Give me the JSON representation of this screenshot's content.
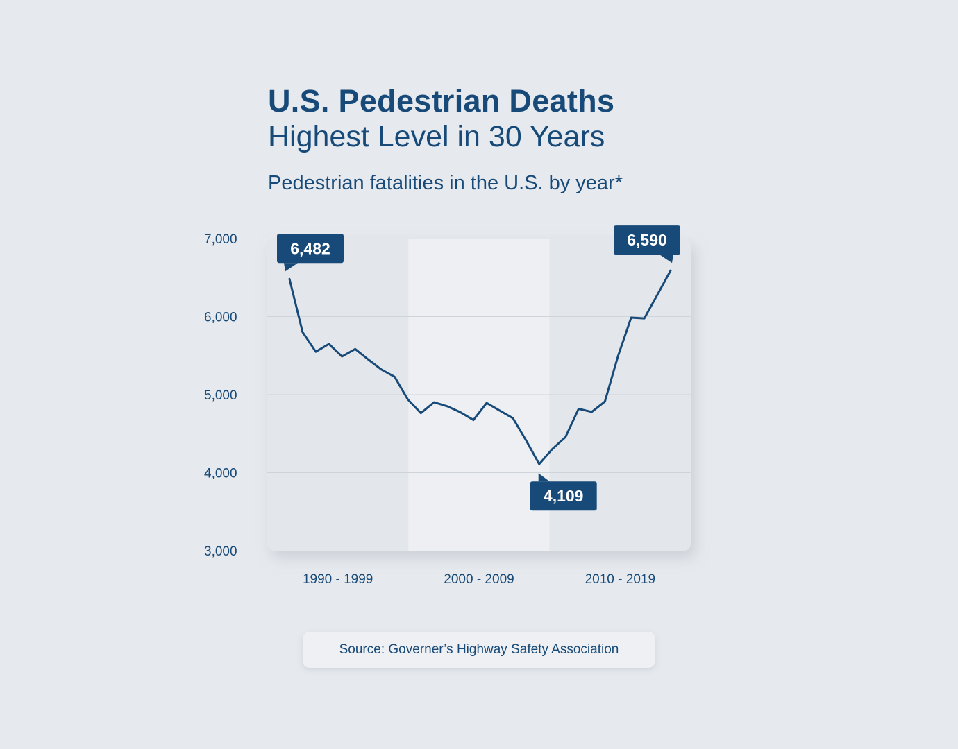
{
  "title": {
    "line1": "U.S. Pedestrian Deaths",
    "line2": "Highest Level in 30 Years"
  },
  "subtitle": "Pedestrian fatalities in the U.S. by year*",
  "source": "Source: Governer’s Highway Safety Association",
  "colors": {
    "background": "#e6e9ed",
    "line": "#174a78",
    "callout": "#174a78",
    "band_dark": "#e3e6ea",
    "band_light": "#edeff2"
  },
  "chart_data": {
    "type": "line",
    "ylim": [
      3000,
      7000
    ],
    "yticks": [
      7000,
      6000,
      5000,
      4000,
      3000
    ],
    "ytick_labels": [
      "7,000",
      "6,000",
      "5,000",
      "4,000",
      "3,000"
    ],
    "x_groups": [
      "1990 - 1999",
      "2000 - 2009",
      "2010 - 2019"
    ],
    "x": [
      1990,
      1991,
      1992,
      1993,
      1994,
      1995,
      1996,
      1997,
      1998,
      1999,
      2000,
      2001,
      2002,
      2003,
      2004,
      2005,
      2006,
      2007,
      2008,
      2009,
      2010,
      2011,
      2012,
      2013,
      2014,
      2015,
      2016,
      2017,
      2018,
      2019
    ],
    "series": [
      {
        "values": [
          6482,
          5801,
          5549,
          5649,
          5489,
          5584,
          5449,
          5321,
          5228,
          4939,
          4763,
          4901,
          4851,
          4774,
          4675,
          4892,
          4795,
          4699,
          4414,
          4109,
          4302,
          4457,
          4818,
          4779,
          4910,
          5495,
          5987,
          5977,
          6283,
          6590
        ]
      }
    ],
    "annotations": [
      {
        "label": "6,482",
        "year": 1990,
        "value": 6482,
        "position": "above"
      },
      {
        "label": "4,109",
        "year": 2009,
        "value": 4109,
        "position": "below"
      },
      {
        "label": "6,590",
        "year": 2019,
        "value": 6590,
        "position": "above-left"
      }
    ],
    "grid": true,
    "legend": "none"
  }
}
